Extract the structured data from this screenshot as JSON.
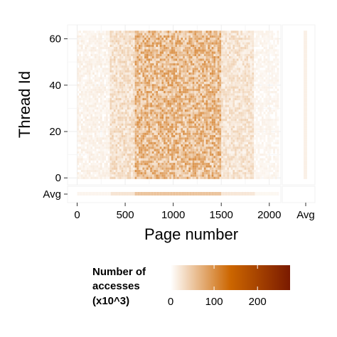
{
  "chart_data": {
    "type": "heatmap",
    "xlabel": "Page number",
    "ylabel": "Thread Id",
    "x_ticks": [
      0,
      500,
      1000,
      1500,
      2000
    ],
    "x_tick_labels": [
      "0",
      "500",
      "1000",
      "1500",
      "2000"
    ],
    "x_extra_label": "Avg",
    "y_ticks": [
      0,
      20,
      40,
      60
    ],
    "y_tick_labels": [
      "0",
      "20",
      "40",
      "60"
    ],
    "y_extra_label": "Avg",
    "xlim": [
      -100,
      2120
    ],
    "ylim": [
      -3,
      66
    ],
    "pages": 2100,
    "threads": 64,
    "grid": true,
    "color_scale": {
      "title_lines": [
        "Number of",
        "accesses",
        "(x10^3)"
      ],
      "ticks": [
        0,
        100,
        200
      ],
      "tick_labels": [
        "0",
        "100",
        "200"
      ],
      "min": 0,
      "max": 275,
      "colors": [
        "#ffffff",
        "#cc6600",
        "#7a1a00"
      ]
    },
    "access_bands": [
      {
        "page_start": 0,
        "page_end": 350,
        "intensity": 0.04
      },
      {
        "page_start": 350,
        "page_end": 600,
        "intensity": 0.1
      },
      {
        "page_start": 600,
        "page_end": 1500,
        "intensity": 0.22
      },
      {
        "page_start": 1500,
        "page_end": 1850,
        "intensity": 0.09
      },
      {
        "page_start": 1850,
        "page_end": 2100,
        "intensity": 0.03
      }
    ]
  }
}
